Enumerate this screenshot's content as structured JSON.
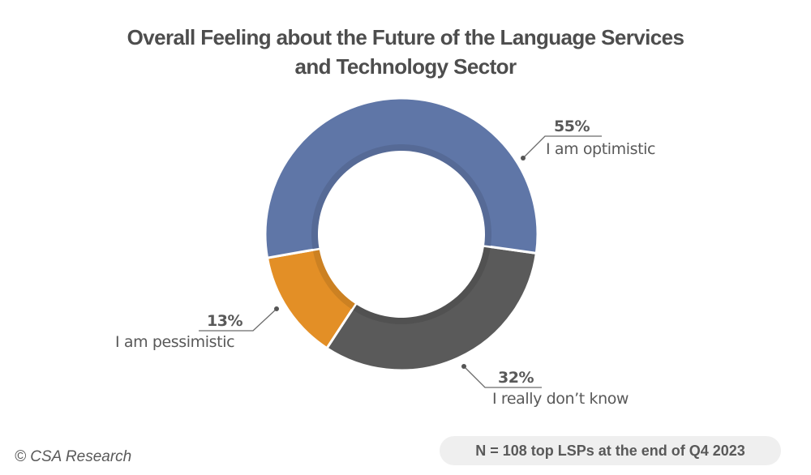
{
  "title": {
    "line1": "Overall Feeling about the Future of the Language Services",
    "line2": "and Technology Sector"
  },
  "slices": [
    {
      "label": "I am optimistic",
      "pct_label": "55%",
      "value": 55,
      "color": "#5f76a7"
    },
    {
      "label": "I really don’t know",
      "pct_label": "32%",
      "value": 32,
      "color": "#5a5a5a"
    },
    {
      "label": "I am pessimistic",
      "pct_label": "13%",
      "value": 13,
      "color": "#e38f26"
    }
  ],
  "footer": {
    "copyright": "© CSA Research",
    "sample_note": "N = 108 top LSPs at the end of Q4 2023"
  },
  "chart_data": {
    "type": "pie",
    "subtype": "donut",
    "title": "Overall Feeling about the Future of the Language Services and Technology Sector",
    "categories": [
      "I am optimistic",
      "I really don’t know",
      "I am pessimistic"
    ],
    "values": [
      55,
      32,
      13
    ],
    "unit": "%",
    "colors": [
      "#5f76a7",
      "#5a5a5a",
      "#e38f26"
    ],
    "annotations": [
      "N = 108 top LSPs at the end of Q4 2023",
      "© CSA Research"
    ],
    "legend": "none (data labels with leader lines)"
  }
}
